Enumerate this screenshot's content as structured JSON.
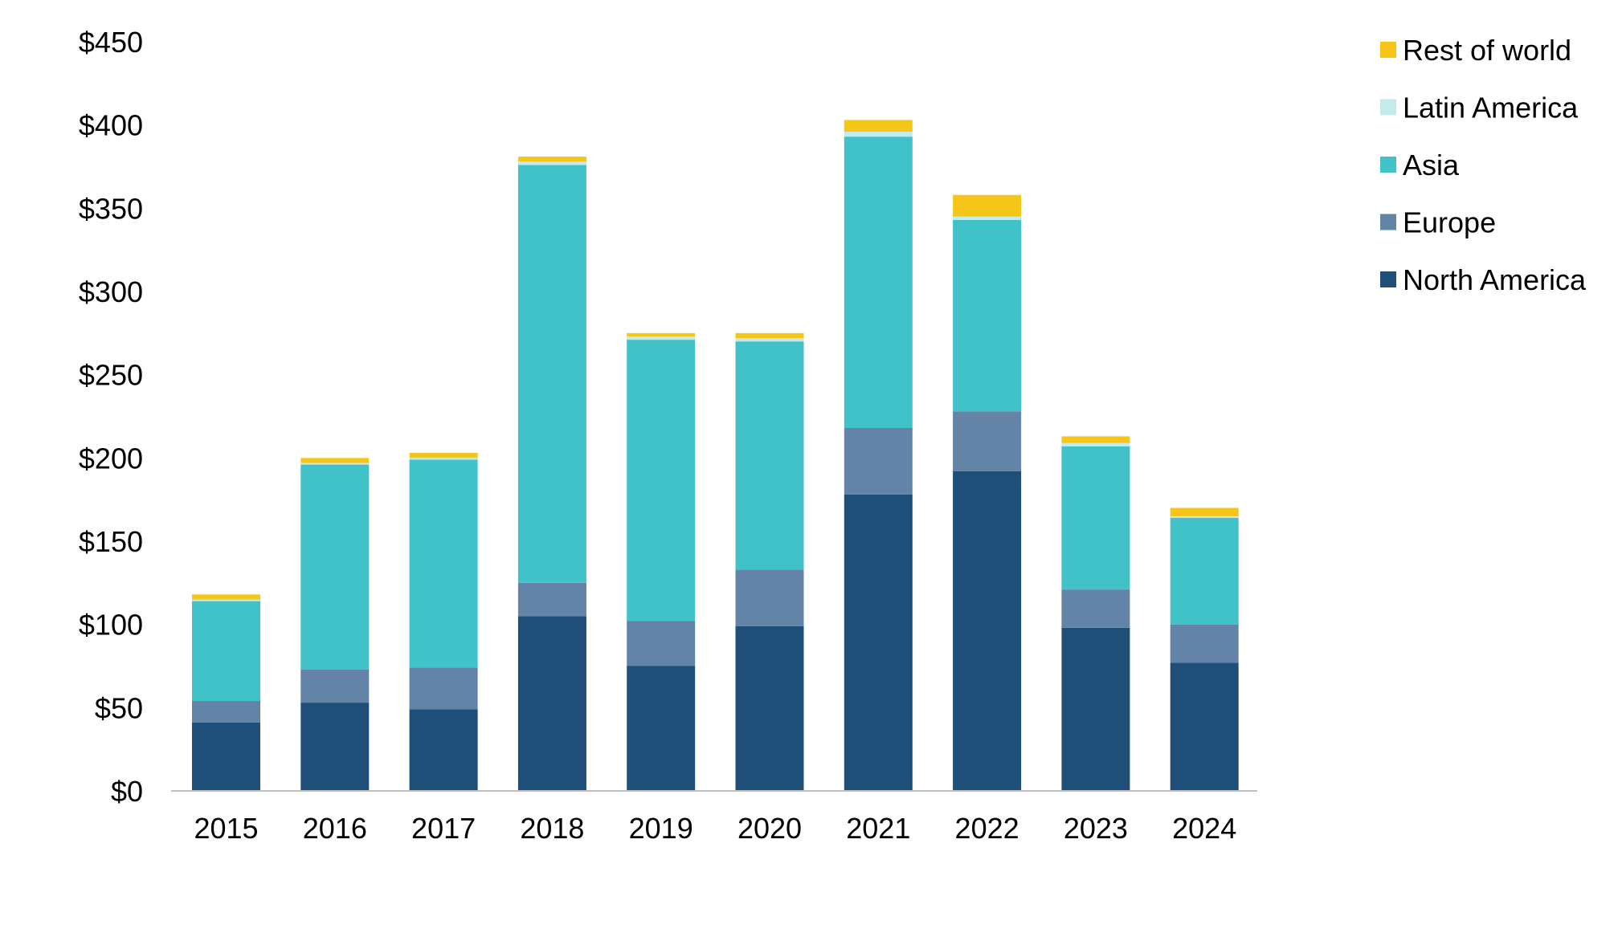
{
  "chart_data": {
    "type": "bar",
    "stacked": true,
    "categories": [
      "2015",
      "2016",
      "2017",
      "2018",
      "2019",
      "2020",
      "2021",
      "2022",
      "2023",
      "2024"
    ],
    "series": [
      {
        "name": "North America",
        "color": "#1f4e79",
        "values": [
          41,
          53,
          49,
          105,
          75,
          99,
          178,
          192,
          98,
          77
        ]
      },
      {
        "name": "Europe",
        "color": "#6384a6",
        "values": [
          13,
          20,
          25,
          20,
          27,
          34,
          40,
          36,
          23,
          23
        ]
      },
      {
        "name": "Asia",
        "color": "#40c2c8",
        "values": [
          60,
          123,
          125,
          251,
          169,
          137,
          175,
          115,
          86,
          64
        ]
      },
      {
        "name": "Latin America",
        "color": "#c4eaec",
        "values": [
          1,
          1,
          1,
          2,
          2,
          2,
          3,
          2,
          2,
          1
        ]
      },
      {
        "name": "Rest of world",
        "color": "#f5c518",
        "values": [
          3,
          3,
          3,
          3,
          2,
          3,
          7,
          13,
          4,
          5
        ]
      }
    ],
    "ylim": [
      0,
      450
    ],
    "yticks": [
      0,
      50,
      100,
      150,
      200,
      250,
      300,
      350,
      400,
      450
    ],
    "ytick_labels": [
      "$0",
      "$50",
      "$100",
      "$150",
      "$200",
      "$250",
      "$300",
      "$350",
      "$400",
      "$450"
    ],
    "legend_position": "top-right",
    "legend_order": [
      "Rest of world",
      "Latin America",
      "Asia",
      "Europe",
      "North America"
    ],
    "grid": false,
    "title": "",
    "xlabel": "",
    "ylabel": ""
  }
}
